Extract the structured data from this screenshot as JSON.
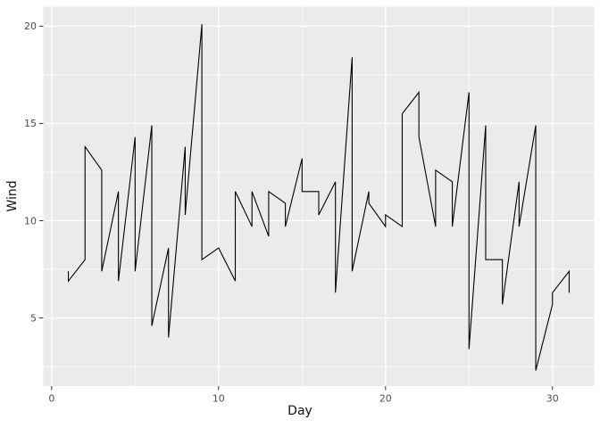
{
  "chart_data": {
    "type": "line",
    "title": "",
    "xlabel": "Day",
    "ylabel": "Wind",
    "x": [
      1,
      2,
      3,
      4,
      5,
      6,
      7,
      8,
      9,
      10,
      11,
      12,
      13,
      14,
      15,
      16,
      17,
      18,
      19,
      20,
      21,
      22,
      23,
      24,
      25,
      26,
      27,
      28,
      29,
      30,
      31
    ],
    "series": [
      {
        "name": "series_1",
        "values": [
          7.4,
          8.0,
          12.6,
          11.5,
          14.3,
          14.9,
          8.6,
          13.8,
          20.1,
          8.6,
          6.9,
          9.7,
          9.2,
          10.9,
          13.2,
          11.5,
          12.0,
          18.4,
          11.5,
          9.7,
          9.7,
          16.6,
          9.7,
          12.0,
          16.6,
          14.9,
          8.0,
          12.0,
          14.9,
          5.7,
          7.4
        ]
      },
      {
        "name": "series_2",
        "values": [
          6.9,
          13.8,
          7.4,
          6.9,
          7.4,
          4.6,
          4.0,
          10.3,
          8.0,
          8.6,
          11.5,
          11.5,
          11.5,
          9.7,
          11.5,
          10.3,
          6.3,
          7.4,
          10.9,
          10.3,
          15.5,
          14.3,
          12.6,
          9.7,
          3.4,
          8.0,
          5.7,
          9.7,
          2.3,
          6.3,
          6.3
        ]
      }
    ],
    "draw_order": "single black polyline; at each x value series_1 point is visited first then series_2 (vertical tie segment), then diagonal to next day",
    "x_major_ticks": [
      0,
      10,
      20,
      30
    ],
    "x_minor_gridlines": [
      5,
      15,
      25
    ],
    "y_major_ticks": [
      5,
      10,
      15,
      20
    ],
    "y_minor_gridlines": [
      2.5,
      7.5,
      12.5,
      17.5
    ],
    "xlim": [
      -0.5,
      32.5
    ],
    "ylim": [
      1.5,
      21.0
    ],
    "grid": "major and minor, white on gray panel",
    "legend": "none"
  },
  "colors": {
    "outer_background": "#FFFFFF",
    "panel_background": "#EBEBEB",
    "gridline": "#FFFFFF",
    "line": "#000000",
    "tick_mark": "#333333",
    "tick_label": "#4D4D4D",
    "axis_title": "#111111"
  }
}
